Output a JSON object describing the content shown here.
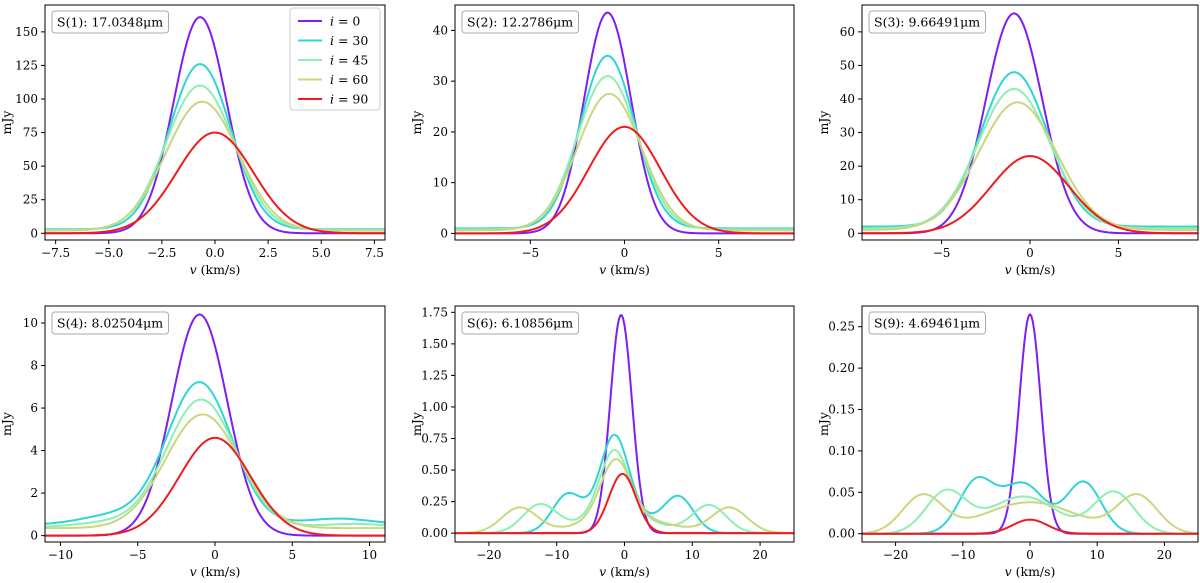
{
  "colors": {
    "i0": "#7f1ef0",
    "i30": "#2fd5d5",
    "i45": "#8df0b0",
    "i60": "#c9d77f",
    "i90": "#ee1c1c"
  },
  "legend": {
    "placement": "top-right of first panel",
    "entries": [
      {
        "key": "i0",
        "var": "i",
        "eq": " = 0"
      },
      {
        "key": "i30",
        "var": "i",
        "eq": " = 30"
      },
      {
        "key": "i45",
        "var": "i",
        "eq": " = 45"
      },
      {
        "key": "i60",
        "var": "i",
        "eq": " = 60"
      },
      {
        "key": "i90",
        "var": "i",
        "eq": " = 90"
      }
    ]
  },
  "axis_text": {
    "xlabel_var": "v",
    "xlabel_unit": " (km/s)",
    "ylabel": "mJy"
  },
  "chart_data": [
    {
      "type": "line",
      "title": "S(1): 17.0348μm",
      "xlim": [
        -8,
        8
      ],
      "ylim": [
        -5,
        170
      ],
      "xticks": [
        -7.5,
        -5.0,
        -2.5,
        0.0,
        2.5,
        5.0,
        7.5
      ],
      "xtick_labels": [
        "−7.5",
        "−5.0",
        "−2.5",
        "0.0",
        "2.5",
        "5.0",
        "7.5"
      ],
      "yticks": [
        0,
        25,
        50,
        75,
        100,
        125,
        150
      ],
      "ytick_labels": [
        "0",
        "25",
        "50",
        "75",
        "100",
        "125",
        "150"
      ],
      "series": [
        {
          "key": "i0",
          "peak": 161,
          "mu": -0.7,
          "sigma": 1.25,
          "base": 0,
          "wings": []
        },
        {
          "key": "i30",
          "peak": 126,
          "mu": -0.7,
          "sigma": 1.45,
          "base": 3,
          "wings": []
        },
        {
          "key": "i45",
          "peak": 110,
          "mu": -0.7,
          "sigma": 1.6,
          "base": 2.5,
          "wings": []
        },
        {
          "key": "i60",
          "peak": 98,
          "mu": -0.6,
          "sigma": 1.7,
          "base": 2,
          "wings": []
        },
        {
          "key": "i90",
          "peak": 75,
          "mu": 0.0,
          "sigma": 1.8,
          "base": 0,
          "wings": []
        }
      ]
    },
    {
      "type": "line",
      "title": "S(2): 12.2786μm",
      "xlim": [
        -9,
        9
      ],
      "ylim": [
        -1.3,
        45
      ],
      "xticks": [
        -5,
        0,
        5
      ],
      "xtick_labels": [
        "−5",
        "0",
        "5"
      ],
      "yticks": [
        0,
        10,
        20,
        30,
        40
      ],
      "ytick_labels": [
        "0",
        "10",
        "20",
        "30",
        "40"
      ],
      "series": [
        {
          "key": "i0",
          "peak": 43.5,
          "mu": -0.9,
          "sigma": 1.25,
          "base": 0,
          "wings": []
        },
        {
          "key": "i30",
          "peak": 35,
          "mu": -0.9,
          "sigma": 1.45,
          "base": 1,
          "wings": []
        },
        {
          "key": "i45",
          "peak": 31,
          "mu": -0.9,
          "sigma": 1.6,
          "base": 0.8,
          "wings": []
        },
        {
          "key": "i60",
          "peak": 27.5,
          "mu": -0.8,
          "sigma": 1.7,
          "base": 0.6,
          "wings": []
        },
        {
          "key": "i90",
          "peak": 21,
          "mu": 0.0,
          "sigma": 1.9,
          "base": 0,
          "wings": []
        }
      ]
    },
    {
      "type": "line",
      "title": "S(3): 9.66491μm",
      "xlim": [
        -9.5,
        9.5
      ],
      "ylim": [
        -2,
        68
      ],
      "xticks": [
        -5,
        0,
        5
      ],
      "xtick_labels": [
        "−5",
        "0",
        "5"
      ],
      "yticks": [
        0,
        10,
        20,
        30,
        40,
        50,
        60
      ],
      "ytick_labels": [
        "0",
        "10",
        "20",
        "30",
        "40",
        "50",
        "60"
      ],
      "series": [
        {
          "key": "i0",
          "peak": 65.5,
          "mu": -0.9,
          "sigma": 1.6,
          "base": 0,
          "wings": []
        },
        {
          "key": "i30",
          "peak": 48,
          "mu": -0.9,
          "sigma": 1.9,
          "base": 2,
          "wings": []
        },
        {
          "key": "i45",
          "peak": 43,
          "mu": -0.9,
          "sigma": 2.05,
          "base": 1.5,
          "wings": []
        },
        {
          "key": "i60",
          "peak": 39,
          "mu": -0.7,
          "sigma": 2.2,
          "base": 1,
          "wings": []
        },
        {
          "key": "i90",
          "peak": 23,
          "mu": 0.0,
          "sigma": 2.2,
          "base": 0,
          "wings": []
        }
      ]
    },
    {
      "type": "line",
      "title": "S(4): 8.02504μm",
      "xlim": [
        -11,
        11
      ],
      "ylim": [
        -0.3,
        10.8
      ],
      "xticks": [
        -10,
        -5,
        0,
        5,
        10
      ],
      "xtick_labels": [
        "−10",
        "−5",
        "0",
        "5",
        "10"
      ],
      "yticks": [
        0,
        2,
        4,
        6,
        8,
        10
      ],
      "ytick_labels": [
        "0",
        "2",
        "4",
        "6",
        "8",
        "10"
      ],
      "series": [
        {
          "key": "i0",
          "peak": 10.4,
          "mu": -1.0,
          "sigma": 1.8,
          "base": 0,
          "wings": []
        },
        {
          "key": "i30",
          "peak": 7.2,
          "mu": -1.0,
          "sigma": 2.1,
          "base": 0.5,
          "wings": [
            {
              "mu": -6.5,
              "a": 0.45,
              "s": 2.2
            },
            {
              "mu": 8.0,
              "a": 0.3,
              "s": 2.2
            }
          ]
        },
        {
          "key": "i45",
          "peak": 6.4,
          "mu": -0.9,
          "sigma": 2.25,
          "base": 0.4,
          "wings": [
            {
              "mu": -7.0,
              "a": 0.2,
              "s": 2.0
            },
            {
              "mu": 9.0,
              "a": 0.15,
              "s": 2.0
            }
          ]
        },
        {
          "key": "i60",
          "peak": 5.7,
          "mu": -0.8,
          "sigma": 2.4,
          "base": 0.35,
          "wings": []
        },
        {
          "key": "i90",
          "peak": 4.6,
          "mu": 0.0,
          "sigma": 2.3,
          "base": 0,
          "wings": []
        }
      ]
    },
    {
      "type": "line",
      "title": "S(6): 6.10856μm",
      "xlim": [
        -25,
        25
      ],
      "ylim": [
        -0.07,
        1.8
      ],
      "xticks": [
        -20,
        -10,
        0,
        10,
        20
      ],
      "xtick_labels": [
        "−20",
        "−10",
        "0",
        "10",
        "20"
      ],
      "yticks": [
        0,
        0.25,
        0.5,
        0.75,
        1.0,
        1.25,
        1.5,
        1.75
      ],
      "ytick_labels": [
        "0.00",
        "0.25",
        "0.50",
        "0.75",
        "1.00",
        "1.25",
        "1.50",
        "1.75"
      ],
      "series": [
        {
          "key": "i0",
          "peak": 1.73,
          "mu": -0.5,
          "sigma": 1.6,
          "base": 0,
          "wings": []
        },
        {
          "key": "i30",
          "peak": 0.58,
          "mu": -1.5,
          "sigma": 2.0,
          "base": 0,
          "wings": [
            {
              "mu": -8.5,
              "a": 0.28,
              "s": 2.2
            },
            {
              "mu": 8.0,
              "a": 0.28,
              "s": 2.2
            },
            {
              "mu": -1.0,
              "a": 0.2,
              "s": 4.0
            }
          ]
        },
        {
          "key": "i45",
          "peak": 0.5,
          "mu": -1.5,
          "sigma": 2.1,
          "base": 0,
          "wings": [
            {
              "mu": -12.5,
              "a": 0.22,
              "s": 2.5
            },
            {
              "mu": 12.5,
              "a": 0.22,
              "s": 2.5
            },
            {
              "mu": -1.0,
              "a": 0.16,
              "s": 5.0
            }
          ]
        },
        {
          "key": "i60",
          "peak": 0.46,
          "mu": -1.3,
          "sigma": 2.2,
          "base": 0,
          "wings": [
            {
              "mu": -15.5,
              "a": 0.2,
              "s": 2.6
            },
            {
              "mu": 15.5,
              "a": 0.2,
              "s": 2.6
            },
            {
              "mu": 0.0,
              "a": 0.13,
              "s": 6.0
            }
          ]
        },
        {
          "key": "i90",
          "peak": 0.47,
          "mu": -0.3,
          "sigma": 2.0,
          "base": 0,
          "wings": []
        }
      ]
    },
    {
      "type": "line",
      "title": "S(9): 4.69461μm",
      "xlim": [
        -25,
        25
      ],
      "ylim": [
        -0.01,
        0.275
      ],
      "xticks": [
        -20,
        -10,
        0,
        10,
        20
      ],
      "xtick_labels": [
        "−20",
        "−10",
        "0",
        "10",
        "20"
      ],
      "yticks": [
        0,
        0.05,
        0.1,
        0.15,
        0.2,
        0.25
      ],
      "ytick_labels": [
        "0.00",
        "0.05",
        "0.10",
        "0.15",
        "0.20",
        "0.25"
      ],
      "series": [
        {
          "key": "i0",
          "peak": 0.265,
          "mu": 0.0,
          "sigma": 1.6,
          "base": 0,
          "wings": []
        },
        {
          "key": "i30",
          "peak": 0.0,
          "mu": 0.0,
          "sigma": 1.0,
          "base": 0,
          "wings": [
            {
              "mu": -8.0,
              "a": 0.062,
              "s": 2.6
            },
            {
              "mu": 8.0,
              "a": 0.062,
              "s": 2.6
            },
            {
              "mu": -1.0,
              "a": 0.06,
              "s": 3.2
            }
          ]
        },
        {
          "key": "i45",
          "peak": 0.0,
          "mu": 0.0,
          "sigma": 1.0,
          "base": 0,
          "wings": [
            {
              "mu": -12.5,
              "a": 0.05,
              "s": 3.0
            },
            {
              "mu": 12.5,
              "a": 0.05,
              "s": 3.0
            },
            {
              "mu": -1.0,
              "a": 0.045,
              "s": 5.0
            }
          ]
        },
        {
          "key": "i60",
          "peak": 0.0,
          "mu": 0.0,
          "sigma": 1.0,
          "base": 0,
          "wings": [
            {
              "mu": -16.0,
              "a": 0.045,
              "s": 3.0
            },
            {
              "mu": 16.0,
              "a": 0.045,
              "s": 3.0
            },
            {
              "mu": 0.0,
              "a": 0.038,
              "s": 7.0
            }
          ]
        },
        {
          "key": "i90",
          "peak": 0.017,
          "mu": 0.0,
          "sigma": 2.6,
          "base": 0,
          "wings": []
        }
      ]
    }
  ]
}
